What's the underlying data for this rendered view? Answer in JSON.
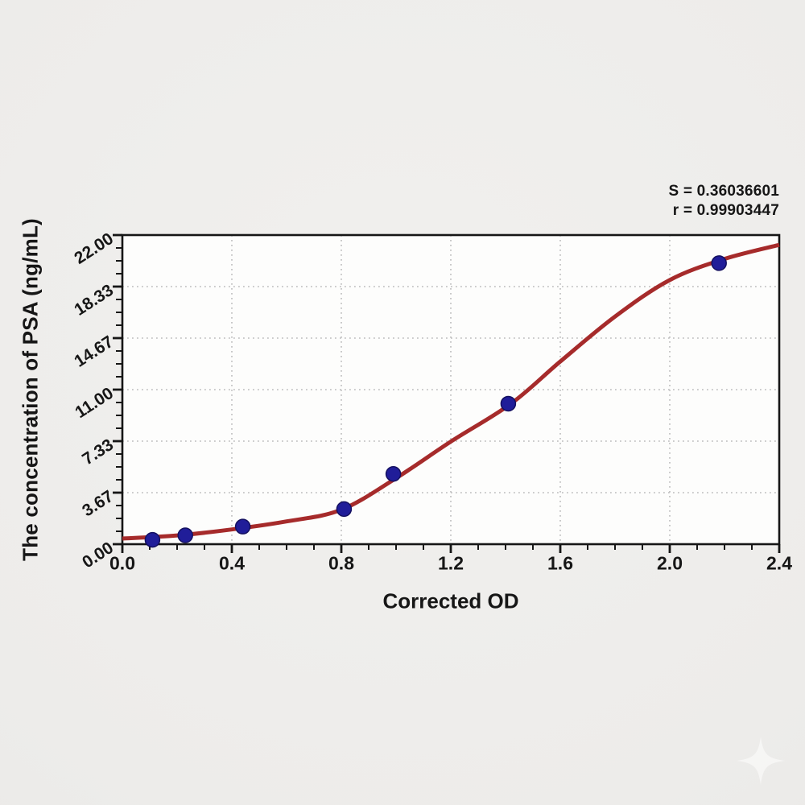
{
  "stats": {
    "s_value": "S = 0.36036601",
    "r_value": "r = 0.99903447"
  },
  "colors": {
    "background": "#edecea",
    "plot_background": "#fdfdfc",
    "frame_and_text": "#161616",
    "gridline": "#bcbcbc",
    "curve": "#a62b2b",
    "marker_fill": "#201d99",
    "marker_edge": "#141060",
    "watermark": "#ffffff"
  },
  "watermark_icon": "four-point-sparkle",
  "chart_data": {
    "type": "scatter",
    "title": "",
    "xlabel": "Corrected OD",
    "ylabel": "The concentration of PSA (ng/mL)",
    "xlim": [
      0.0,
      2.4
    ],
    "ylim": [
      0.0,
      22.0
    ],
    "x_ticks": {
      "values": [
        0.0,
        0.4,
        0.8,
        1.2,
        1.6,
        2.0,
        2.4
      ],
      "labels": [
        "0.0",
        "0.4",
        "0.8",
        "1.2",
        "1.6",
        "2.0",
        "2.4"
      ]
    },
    "y_ticks": {
      "values": [
        0.0,
        3.6667,
        7.3333,
        11.0,
        14.6667,
        18.3333,
        22.0
      ],
      "labels": [
        "0.00",
        "3.67",
        "7.33",
        "11.00",
        "14.67",
        "18.33",
        "22.00"
      ]
    },
    "minor_ticks_between_majors": 3,
    "grid": {
      "visible": true,
      "style": "dotted",
      "on": "major"
    },
    "legend": "none",
    "annotations": {
      "s": "S = 0.36036601",
      "r": "r = 0.99903447"
    },
    "series": [
      {
        "name": "standard-points",
        "type": "scatter",
        "marker": "circle",
        "color": "#201d99",
        "x": [
          0.11,
          0.23,
          0.44,
          0.81,
          0.99,
          1.41,
          2.18
        ],
        "y": [
          0.31,
          0.63,
          1.25,
          2.5,
          5.0,
          10.0,
          20.0
        ]
      },
      {
        "name": "fitted-standard-curve",
        "type": "line",
        "color": "#a62b2b",
        "points": [
          [
            0.0,
            0.4
          ],
          [
            0.2,
            0.62
          ],
          [
            0.4,
            1.05
          ],
          [
            0.6,
            1.62
          ],
          [
            0.8,
            2.45
          ],
          [
            1.0,
            4.7
          ],
          [
            1.2,
            7.3
          ],
          [
            1.42,
            10.0
          ],
          [
            1.6,
            13.0
          ],
          [
            1.8,
            16.2
          ],
          [
            2.0,
            18.8
          ],
          [
            2.2,
            20.3
          ],
          [
            2.4,
            21.3
          ]
        ]
      }
    ]
  }
}
